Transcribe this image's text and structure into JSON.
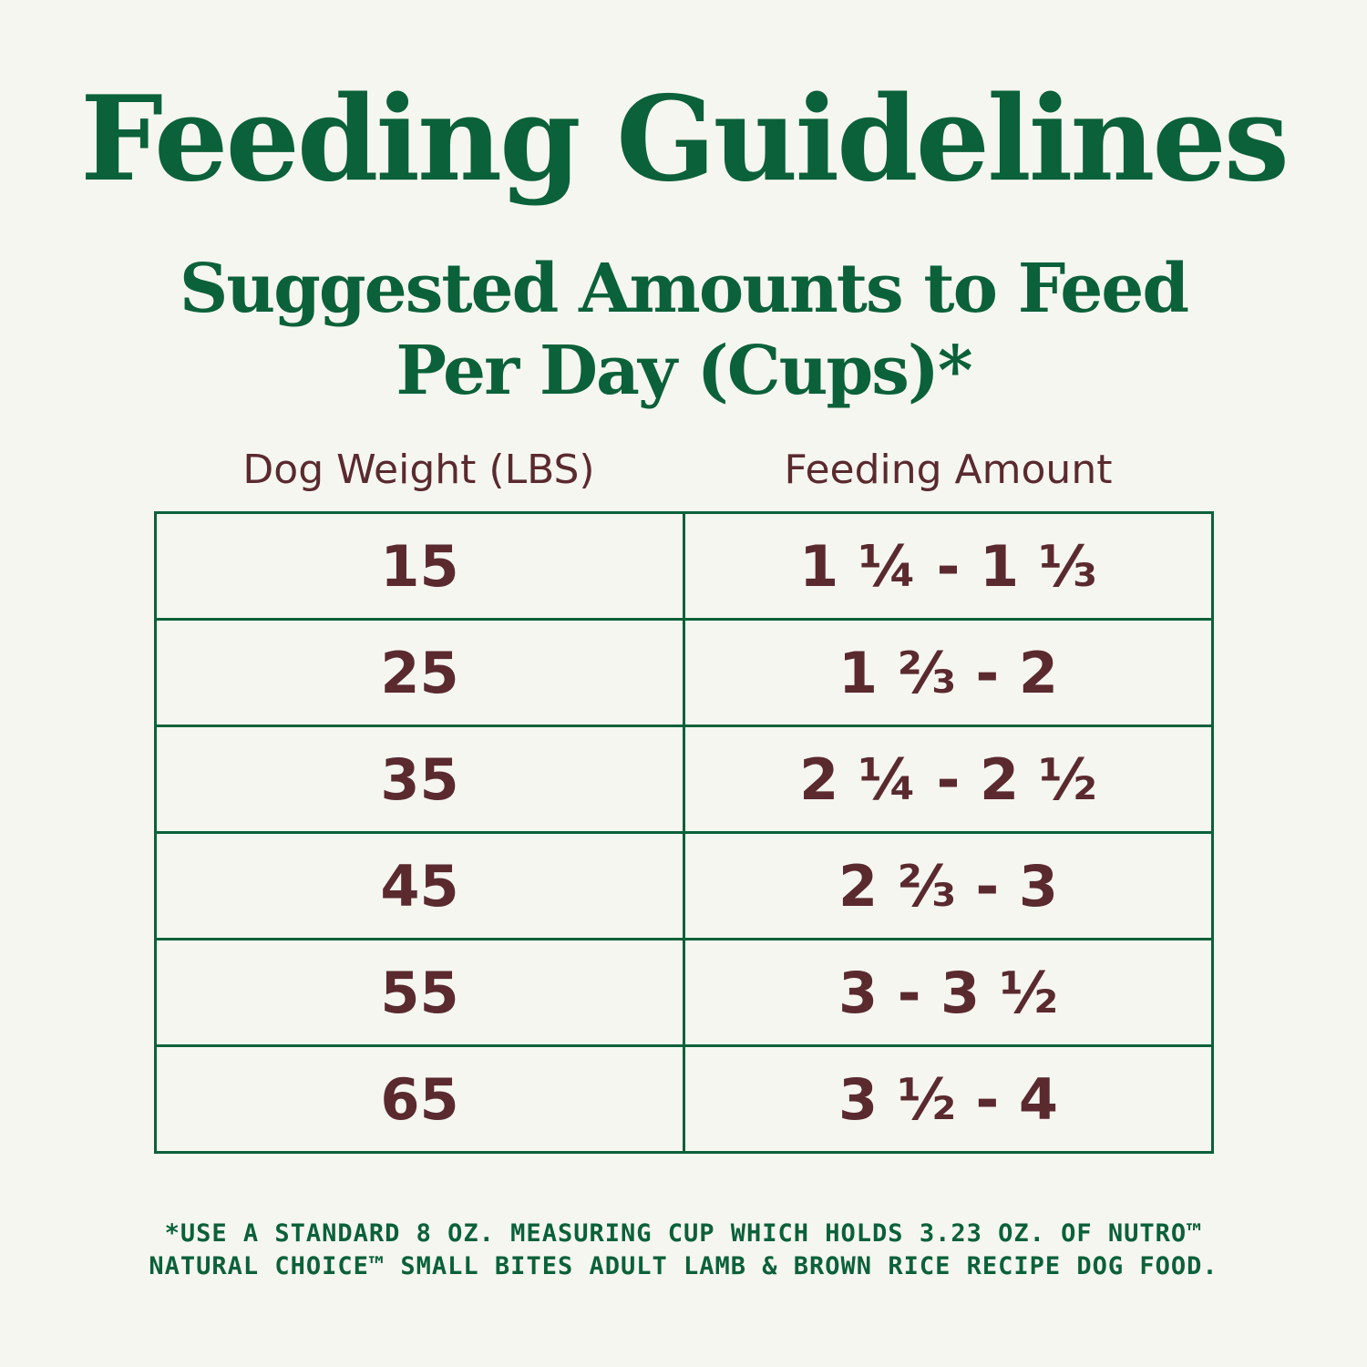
{
  "title": "Feeding Guidelines",
  "subtitle_line1": "Suggested Amounts to Feed",
  "subtitle_line2": "Per Day (Cups)*",
  "table": {
    "headers": [
      "Dog Weight (LBS)",
      "Feeding Amount"
    ],
    "rows": [
      [
        "15",
        "1 ¼ - 1 ⅓"
      ],
      [
        "25",
        "1 ⅔ - 2"
      ],
      [
        "35",
        "2 ¼ - 2 ½"
      ],
      [
        "45",
        "2 ⅔ - 3"
      ],
      [
        "55",
        "3 - 3 ½"
      ],
      [
        "65",
        "3 ½ - 4"
      ]
    ]
  },
  "footnote_line1": "*USE A STANDARD 8 OZ. MEASURING CUP WHICH HOLDS 3.23 OZ. OF NUTRO™",
  "footnote_line2": "NATURAL CHOICE™ SMALL BITES ADULT LAMB & BROWN RICE RECIPE DOG FOOD.",
  "colors": {
    "accent": "#0b6139",
    "text": "#5a2a2e",
    "background": "#f6f6f1"
  }
}
